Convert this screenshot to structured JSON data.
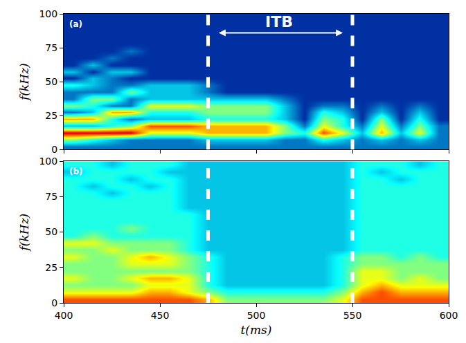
{
  "chart_data": [
    {
      "type": "heatmap",
      "label": "(a)",
      "ylabel": "f(kHz)",
      "tick_labels": "y",
      "xlim": [
        400,
        600
      ],
      "ylim": [
        0,
        100
      ],
      "xticks": [
        400,
        450,
        500,
        550,
        600
      ],
      "yticks": [
        0,
        25,
        50,
        75,
        100
      ],
      "zlim": [
        0,
        10
      ],
      "x": [
        405,
        415,
        425,
        435,
        445,
        455,
        465,
        475,
        485,
        495,
        505,
        515,
        525,
        535,
        545,
        555,
        565,
        575,
        585,
        595
      ],
      "y": [
        2.5,
        7.5,
        12.5,
        17.5,
        22.5,
        27.5,
        32.5,
        37.5,
        42.5,
        47.5,
        52.5,
        57.5,
        62.5,
        67.5,
        72.5,
        77.5,
        82.5,
        87.5,
        92.5,
        97.5
      ],
      "z": [
        [
          2,
          2,
          2,
          2,
          2,
          2,
          2,
          2,
          2,
          2,
          2,
          2,
          2,
          2,
          2,
          2,
          2,
          2,
          2,
          2
        ],
        [
          5,
          4,
          3,
          2,
          2,
          2,
          2,
          3,
          3,
          3,
          3,
          2,
          2,
          4,
          3,
          2,
          3,
          2,
          3,
          2
        ],
        [
          9,
          9,
          9,
          9,
          6,
          6,
          6,
          7,
          7,
          7,
          7,
          5,
          4,
          8,
          6,
          3,
          7,
          3,
          6,
          2
        ],
        [
          3,
          3,
          4,
          5,
          8,
          8,
          8,
          7,
          7,
          7,
          7,
          5,
          2,
          6,
          4,
          2,
          6,
          2,
          5,
          2
        ],
        [
          7,
          7,
          4,
          2,
          3,
          3,
          3,
          4,
          4,
          4,
          4,
          3,
          1,
          5,
          4,
          1,
          5,
          1,
          4,
          1
        ],
        [
          2,
          3,
          7,
          7,
          4,
          4,
          4,
          5,
          5,
          5,
          5,
          3,
          1,
          4,
          3,
          1,
          3,
          1,
          3,
          1
        ],
        [
          5,
          4,
          2,
          2,
          6,
          6,
          6,
          5,
          5,
          5,
          5,
          3,
          1,
          2,
          2,
          1,
          2,
          1,
          2,
          1
        ],
        [
          2,
          5,
          5,
          2,
          3,
          3,
          3,
          3,
          3,
          3,
          3,
          2,
          1,
          1,
          1,
          1,
          1,
          1,
          1,
          1
        ],
        [
          2,
          2,
          2,
          5,
          3,
          3,
          3,
          2,
          1,
          1,
          1,
          1,
          1,
          1,
          1,
          1,
          1,
          1,
          1,
          1
        ],
        [
          4,
          3,
          2,
          2,
          3,
          3,
          3,
          2,
          1,
          1,
          1,
          1,
          1,
          1,
          1,
          1,
          1,
          1,
          1,
          1
        ],
        [
          1,
          3,
          2,
          1,
          1,
          1,
          1,
          1,
          1,
          1,
          1,
          1,
          1,
          1,
          1,
          1,
          1,
          1,
          1,
          1
        ],
        [
          3,
          1,
          3,
          3,
          1,
          1,
          1,
          1,
          1,
          1,
          1,
          1,
          1,
          1,
          1,
          1,
          1,
          1,
          1,
          1
        ],
        [
          1,
          3,
          1,
          1,
          1,
          1,
          1,
          1,
          1,
          1,
          1,
          1,
          1,
          1,
          1,
          1,
          1,
          1,
          1,
          1
        ],
        [
          1,
          1,
          2,
          1,
          1,
          1,
          1,
          1,
          1,
          1,
          1,
          1,
          1,
          1,
          1,
          1,
          1,
          1,
          1,
          1
        ],
        [
          1,
          1,
          1,
          2,
          1,
          1,
          1,
          1,
          1,
          1,
          1,
          1,
          1,
          1,
          1,
          1,
          1,
          1,
          1,
          1
        ],
        [
          1,
          1,
          1,
          1,
          1,
          1,
          1,
          1,
          1,
          1,
          1,
          1,
          1,
          1,
          1,
          1,
          1,
          1,
          1,
          1
        ],
        [
          1,
          1,
          1,
          1,
          1,
          1,
          1,
          1,
          1,
          1,
          1,
          1,
          1,
          1,
          1,
          1,
          1,
          1,
          1,
          1
        ],
        [
          1,
          1,
          1,
          1,
          1,
          1,
          1,
          1,
          1,
          1,
          1,
          1,
          1,
          1,
          1,
          1,
          1,
          1,
          1,
          1
        ],
        [
          1,
          1,
          1,
          1,
          1,
          1,
          1,
          1,
          1,
          1,
          1,
          1,
          1,
          1,
          1,
          1,
          1,
          1,
          1,
          1
        ],
        [
          1,
          1,
          1,
          1,
          1,
          1,
          1,
          1,
          1,
          1,
          1,
          1,
          1,
          1,
          1,
          1,
          1,
          1,
          1,
          1
        ]
      ],
      "vlines": [
        475,
        550
      ],
      "annotations": [
        {
          "text": "ITB",
          "x": 512,
          "y": 94
        }
      ],
      "arrows": [
        {
          "x": [
            480,
            545
          ],
          "y": 86
        }
      ]
    },
    {
      "type": "heatmap",
      "label": "(b)",
      "xlabel": "t(ms)",
      "ylabel": "f(kHz)",
      "xlim": [
        400,
        600
      ],
      "ylim": [
        0,
        100
      ],
      "xticks": [
        400,
        450,
        500,
        550,
        600
      ],
      "yticks": [
        0,
        25,
        50,
        75,
        100
      ],
      "zlim": [
        0,
        10
      ],
      "x": [
        405,
        415,
        425,
        435,
        445,
        455,
        465,
        475,
        485,
        495,
        505,
        515,
        525,
        535,
        545,
        555,
        565,
        575,
        585,
        595
      ],
      "y": [
        2.5,
        7.5,
        12.5,
        17.5,
        22.5,
        27.5,
        32.5,
        37.5,
        42.5,
        47.5,
        52.5,
        57.5,
        62.5,
        67.5,
        72.5,
        77.5,
        82.5,
        87.5,
        92.5,
        97.5
      ],
      "z": [
        [
          8,
          8,
          8,
          8,
          8,
          8,
          8,
          7,
          5,
          5,
          5,
          5,
          5,
          5,
          6,
          8,
          8,
          8,
          8,
          8
        ],
        [
          6,
          6,
          6,
          6,
          7,
          7,
          6,
          5,
          4,
          4,
          4,
          4,
          4,
          4,
          5,
          7,
          8,
          7,
          7,
          7
        ],
        [
          5,
          5,
          5,
          5,
          6,
          6,
          6,
          4,
          3,
          3,
          3,
          3,
          3,
          3,
          4,
          6,
          7,
          6,
          6,
          6
        ],
        [
          6,
          5,
          5,
          6,
          7,
          7,
          6,
          4,
          3,
          3,
          3,
          3,
          3,
          3,
          4,
          6,
          6,
          5,
          6,
          5
        ],
        [
          5,
          5,
          5,
          5,
          5,
          5,
          5,
          4,
          3,
          3,
          3,
          3,
          3,
          3,
          4,
          6,
          6,
          5,
          5,
          5
        ],
        [
          5,
          5,
          5,
          6,
          6,
          6,
          5,
          4,
          3,
          3,
          3,
          3,
          3,
          3,
          4,
          5,
          5,
          5,
          5,
          5
        ],
        [
          6,
          5,
          5,
          6,
          7,
          6,
          5,
          4,
          3,
          3,
          3,
          3,
          3,
          3,
          4,
          5,
          5,
          4,
          5,
          4
        ],
        [
          5,
          5,
          6,
          5,
          5,
          5,
          4,
          3,
          3,
          3,
          3,
          3,
          3,
          3,
          3,
          4,
          4,
          4,
          4,
          4
        ],
        [
          6,
          6,
          5,
          5,
          5,
          5,
          4,
          3,
          3,
          3,
          3,
          3,
          3,
          3,
          3,
          4,
          4,
          4,
          4,
          4
        ],
        [
          4,
          5,
          4,
          4,
          4,
          4,
          4,
          3,
          3,
          3,
          3,
          3,
          3,
          3,
          3,
          4,
          4,
          4,
          4,
          4
        ],
        [
          4,
          4,
          4,
          5,
          4,
          4,
          4,
          3,
          3,
          3,
          3,
          3,
          3,
          3,
          3,
          4,
          4,
          4,
          4,
          4
        ],
        [
          4,
          4,
          4,
          4,
          4,
          4,
          4,
          3,
          3,
          3,
          3,
          3,
          3,
          3,
          3,
          4,
          4,
          4,
          4,
          4
        ],
        [
          4,
          4,
          4,
          4,
          4,
          4,
          4,
          3,
          3,
          3,
          3,
          3,
          3,
          3,
          3,
          4,
          4,
          4,
          4,
          4
        ],
        [
          4,
          4,
          4,
          4,
          4,
          4,
          3,
          3,
          3,
          3,
          3,
          3,
          3,
          3,
          3,
          4,
          4,
          4,
          4,
          4
        ],
        [
          4,
          4,
          4,
          4,
          4,
          4,
          3,
          3,
          3,
          3,
          3,
          3,
          3,
          3,
          3,
          4,
          4,
          4,
          4,
          4
        ],
        [
          4,
          4,
          3,
          4,
          4,
          4,
          3,
          3,
          3,
          3,
          3,
          3,
          3,
          3,
          3,
          4,
          4,
          4,
          4,
          4
        ],
        [
          4,
          3,
          4,
          4,
          3,
          4,
          3,
          3,
          3,
          3,
          3,
          3,
          3,
          3,
          3,
          4,
          4,
          4,
          4,
          4
        ],
        [
          4,
          4,
          4,
          3,
          4,
          4,
          3,
          3,
          3,
          3,
          3,
          3,
          3,
          3,
          3,
          4,
          4,
          3,
          4,
          4
        ],
        [
          3,
          4,
          4,
          4,
          4,
          3,
          3,
          3,
          3,
          3,
          3,
          3,
          3,
          3,
          3,
          4,
          3,
          4,
          4,
          4
        ],
        [
          4,
          4,
          3,
          4,
          4,
          4,
          3,
          3,
          3,
          3,
          3,
          3,
          3,
          3,
          3,
          4,
          4,
          4,
          3,
          4
        ]
      ],
      "vlines": [
        475,
        550
      ]
    }
  ]
}
